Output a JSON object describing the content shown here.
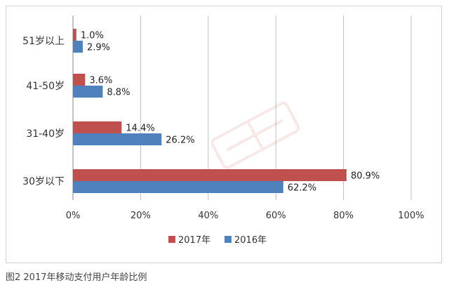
{
  "chart_data": {
    "type": "bar",
    "orientation": "horizontal",
    "categories": [
      "51岁以上",
      "41-50岁",
      "31-40岁",
      "30岁以下"
    ],
    "series": [
      {
        "name": "2017年",
        "color": "#c0504d",
        "values": [
          1.0,
          3.6,
          14.4,
          80.9
        ],
        "labels": [
          "1.0%",
          "3.6%",
          "14.4%",
          "80.9%"
        ]
      },
      {
        "name": "2016年",
        "color": "#4f81bd",
        "values": [
          2.9,
          8.8,
          26.2,
          62.2
        ],
        "labels": [
          "2.9%",
          "8.8%",
          "26.2%",
          "62.2%"
        ]
      }
    ],
    "xlim": [
      0,
      100
    ],
    "xticks": [
      0,
      20,
      40,
      60,
      80,
      100
    ],
    "xtick_labels": [
      "0%",
      "20%",
      "40%",
      "60%",
      "80%",
      "100%"
    ],
    "grid": true,
    "legend_position": "bottom"
  },
  "caption": "图2  2017年移动支付用户年龄比例"
}
